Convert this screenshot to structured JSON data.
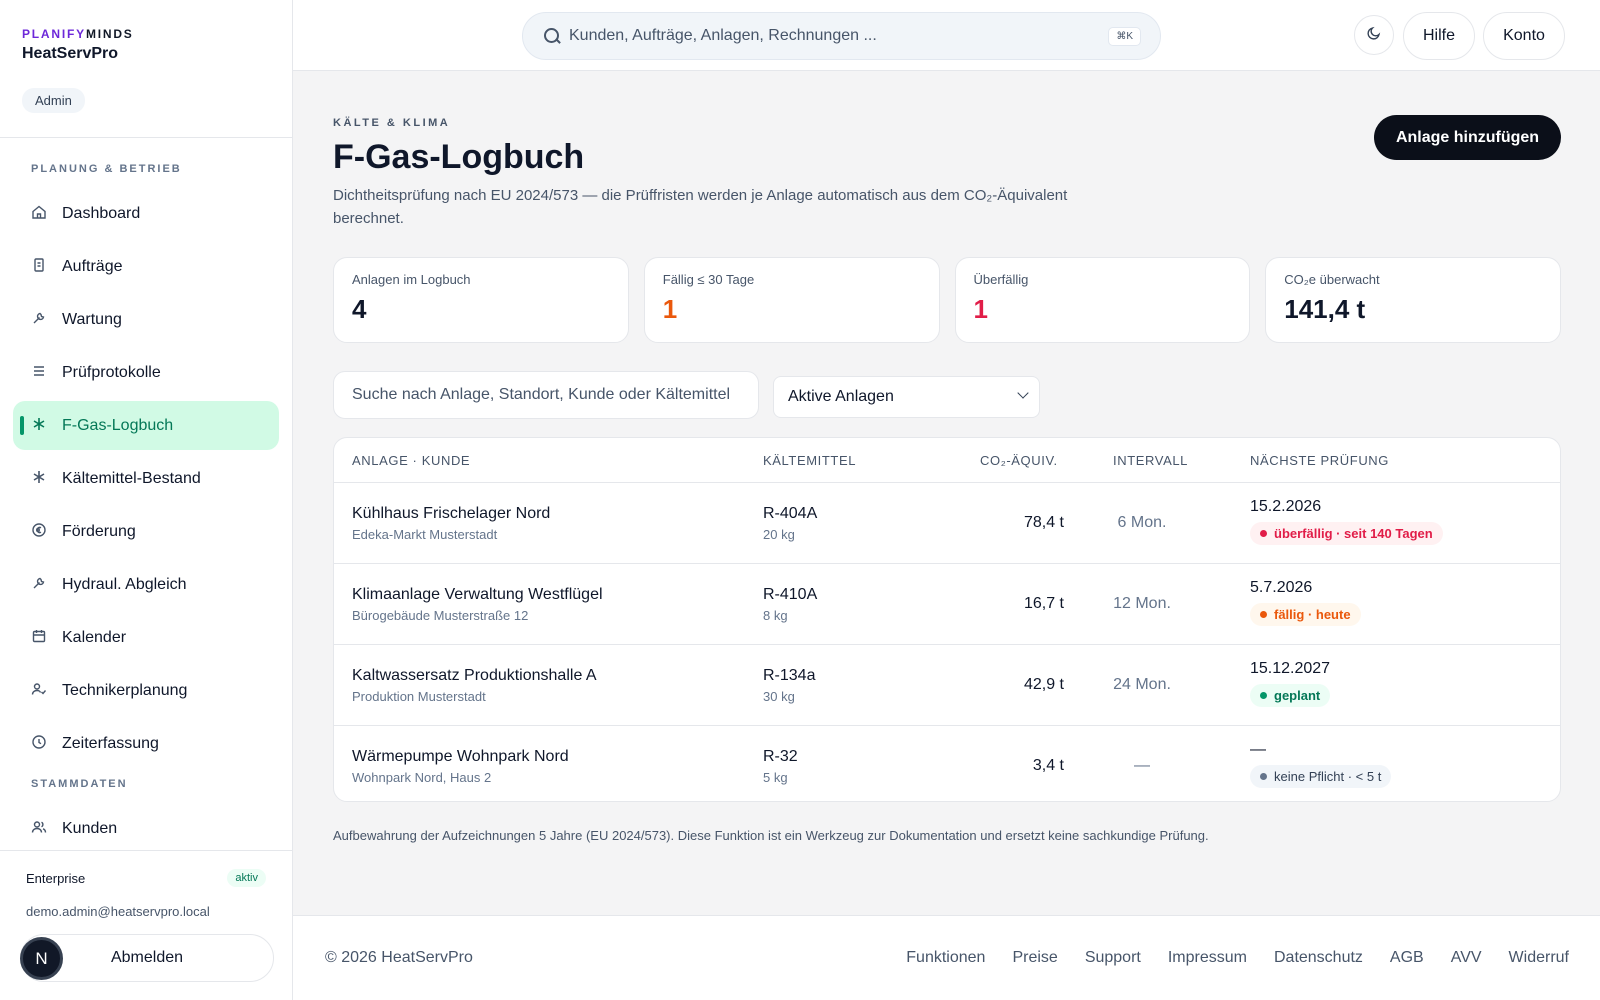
{
  "brand": {
    "part1": "PLANIFY",
    "part2": "MINDS",
    "app_name": "HeatServPro",
    "role": "Admin"
  },
  "nav": {
    "section_operations": "PLANUNG & BETRIEB",
    "items": [
      {
        "label": "Dashboard",
        "icon": "home-icon"
      },
      {
        "label": "Aufträge",
        "icon": "clipboard-icon"
      },
      {
        "label": "Wartung",
        "icon": "wrench-icon"
      },
      {
        "label": "Prüfprotokolle",
        "icon": "list-icon"
      },
      {
        "label": "F-Gas-Logbuch",
        "icon": "snowflake-icon",
        "active": true
      },
      {
        "label": "Kältemittel-Bestand",
        "icon": "snowflake-icon"
      },
      {
        "label": "Förderung",
        "icon": "euro-icon"
      },
      {
        "label": "Hydraul. Abgleich",
        "icon": "wrench-icon"
      },
      {
        "label": "Kalender",
        "icon": "calendar-icon"
      },
      {
        "label": "Technikerplanung",
        "icon": "user-check-icon"
      },
      {
        "label": "Zeiterfassung",
        "icon": "clock-icon"
      }
    ],
    "section_master": "STAMMDATEN",
    "master_items": [
      {
        "label": "Kunden",
        "icon": "users-icon"
      }
    ]
  },
  "account": {
    "plan": "Enterprise",
    "plan_status": "aktiv",
    "email": "demo.admin@heatservpro.local",
    "logout_label": "Abmelden",
    "avatar_letter": "N"
  },
  "topbar": {
    "search_placeholder": "Kunden, Aufträge, Anlagen, Rechnungen ...",
    "shortcut": "⌘K",
    "help_label": "Hilfe",
    "account_label": "Konto"
  },
  "page": {
    "eyebrow": "KÄLTE & KLIMA",
    "title": "F-Gas-Logbuch",
    "description": "Dichtheitsprüfung nach EU 2024/573 — die Prüffristen werden je Anlage automatisch aus dem CO₂-Äquivalent berechnet.",
    "add_button": "Anlage hinzufügen"
  },
  "stats": [
    {
      "label": "Anlagen im Logbuch",
      "value": "4",
      "tone": "default"
    },
    {
      "label": "Fällig ≤ 30 Tage",
      "value": "1",
      "tone": "orange"
    },
    {
      "label": "Überfällig",
      "value": "1",
      "tone": "red"
    },
    {
      "label": "CO₂e überwacht",
      "value": "141,4 t",
      "tone": "default"
    }
  ],
  "filters": {
    "search_placeholder": "Suche nach Anlage, Standort, Kunde oder Kältemittel",
    "status_value": "Aktive Anlagen"
  },
  "table": {
    "headers": {
      "anlage": "ANLAGE · KUNDE",
      "kaeltemittel": "KÄLTEMITTEL",
      "co2": "CO₂-ÄQUIV.",
      "intervall": "INTERVALL",
      "naechste": "NÄCHSTE PRÜFUNG"
    },
    "rows": [
      {
        "anlage": "Kühlhaus Frischelager Nord",
        "kunde": "Edeka-Markt Musterstadt",
        "kaeltemittel": "R-404A",
        "menge": "20 kg",
        "co2": "78,4 t",
        "intervall": "6 Mon.",
        "datum": "15.2.2026",
        "status": "überfällig · seit 140 Tagen",
        "status_tone": "red"
      },
      {
        "anlage": "Klimaanlage Verwaltung Westflügel",
        "kunde": "Bürogebäude Musterstraße 12",
        "kaeltemittel": "R-410A",
        "menge": "8 kg",
        "co2": "16,7 t",
        "intervall": "12 Mon.",
        "datum": "5.7.2026",
        "status": "fällig · heute",
        "status_tone": "orange"
      },
      {
        "anlage": "Kaltwassersatz Produktionshalle A",
        "kunde": "Produktion Musterstadt",
        "kaeltemittel": "R-134a",
        "menge": "30 kg",
        "co2": "42,9 t",
        "intervall": "24 Mon.",
        "datum": "15.12.2027",
        "status": "geplant",
        "status_tone": "green"
      },
      {
        "anlage": "Wärmepumpe Wohnpark Nord",
        "kunde": "Wohnpark Nord, Haus 2",
        "kaeltemittel": "R-32",
        "menge": "5 kg",
        "co2": "3,4 t",
        "intervall": "—",
        "datum": "—",
        "status": "keine Pflicht · < 5 t",
        "status_tone": "gray"
      }
    ]
  },
  "footnote": "Aufbewahrung der Aufzeichnungen 5 Jahre (EU 2024/573). Diese Funktion ist ein Werkzeug zur Dokumentation und ersetzt keine sachkundige Prüfung.",
  "footer": {
    "copyright": "© 2026 HeatServPro",
    "links": [
      "Funktionen",
      "Preise",
      "Support",
      "Impressum",
      "Datenschutz",
      "AGB",
      "AVV",
      "Widerruf"
    ]
  }
}
